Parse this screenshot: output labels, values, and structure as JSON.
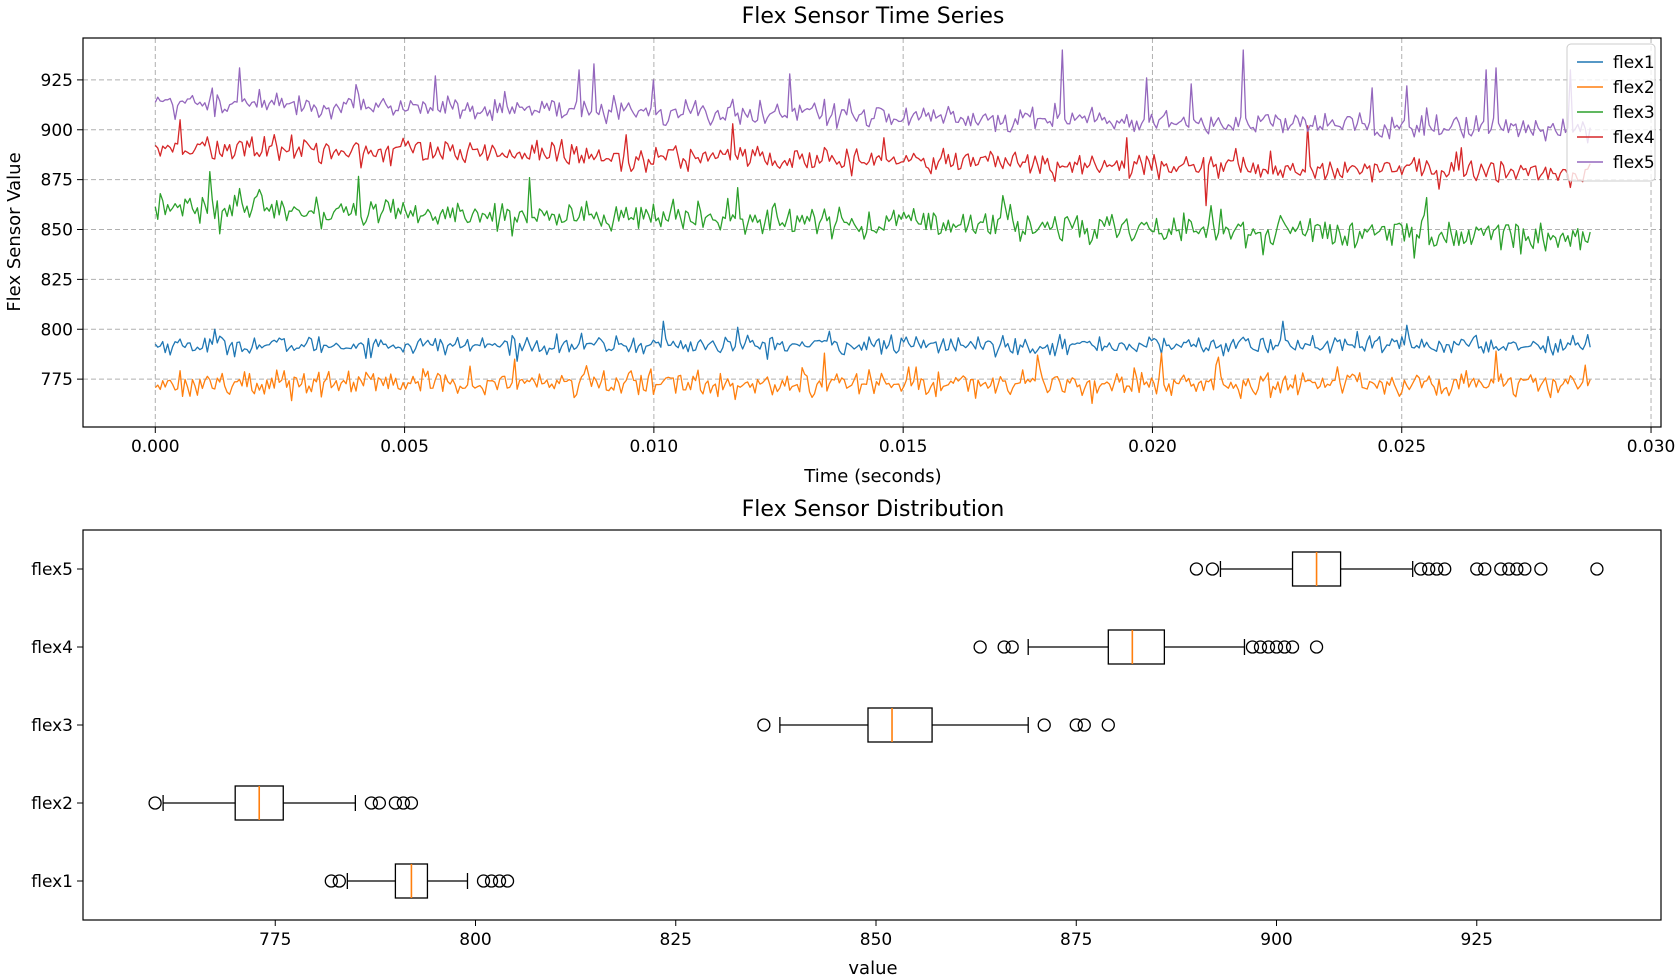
{
  "figure": {
    "background": "#ffffff"
  },
  "chart_data": [
    {
      "type": "line",
      "title": "Flex Sensor Time Series",
      "xlabel": "Time (seconds)",
      "ylabel": "Flex Sensor Value",
      "xlim": [
        -0.00145,
        0.0302
      ],
      "ylim": [
        751,
        946
      ],
      "xticks": [
        0.0,
        0.005,
        0.01,
        0.015,
        0.02,
        0.025,
        0.03
      ],
      "xtick_labels": [
        "0.000",
        "0.005",
        "0.010",
        "0.015",
        "0.020",
        "0.025",
        "0.030"
      ],
      "yticks": [
        775,
        800,
        825,
        850,
        875,
        900,
        925
      ],
      "ytick_labels": [
        "775",
        "800",
        "825",
        "850",
        "875",
        "900",
        "925"
      ],
      "grid": true,
      "legend_position": "top-right",
      "sample_count": 580,
      "x_end": 0.02878,
      "series": [
        {
          "name": "flex1",
          "color": "#1f77b4",
          "noise": 2.3,
          "trend": [
            [
              0.0,
              792
            ],
            [
              0.0288,
              792
            ]
          ],
          "spikes": [
            [
              0.0012,
              800
            ],
            [
              0.0102,
              804
            ],
            [
              0.0117,
              801
            ],
            [
              0.0135,
              799
            ],
            [
              0.0226,
              804
            ],
            [
              0.0251,
              802
            ]
          ]
        },
        {
          "name": "flex2",
          "color": "#ff7f0e",
          "noise": 3.3,
          "trend": [
            [
              0.0,
              773
            ],
            [
              0.0288,
              773
            ]
          ],
          "spikes": [
            [
              0.0072,
              785
            ],
            [
              0.0134,
              788
            ],
            [
              0.0177,
              787
            ],
            [
              0.0202,
              788
            ],
            [
              0.0213,
              786
            ],
            [
              0.0269,
              789
            ],
            [
              0.0287,
              782
            ]
          ]
        },
        {
          "name": "flex3",
          "color": "#2ca02c",
          "noise": 4.0,
          "trend": [
            [
              0.0,
              861
            ],
            [
              0.0288,
              846
            ]
          ],
          "spikes": [
            [
              0.0001,
              868
            ],
            [
              0.0011,
              879
            ],
            [
              0.0075,
              876
            ],
            [
              0.0117,
              871
            ],
            [
              0.017,
              867
            ],
            [
              0.0255,
              866
            ]
          ]
        },
        {
          "name": "flex4",
          "color": "#d62728",
          "noise": 3.2,
          "trend": [
            [
              0.0,
              891
            ],
            [
              0.0288,
              878
            ]
          ],
          "spikes": [
            [
              0.0005,
              905
            ],
            [
              0.0116,
              903
            ],
            [
              0.0146,
              896
            ],
            [
              0.0195,
              896
            ],
            [
              0.0231,
              902
            ],
            [
              0.0262,
              891
            ],
            [
              0.0211,
              862
            ]
          ]
        },
        {
          "name": "flex5",
          "color": "#9467bd",
          "noise": 3.1,
          "trend": [
            [
              0.0,
              914
            ],
            [
              0.0288,
              900
            ]
          ],
          "spikes": [
            [
              0.0017,
              931
            ],
            [
              0.0056,
              927
            ],
            [
              0.0085,
              930
            ],
            [
              0.0088,
              933
            ],
            [
              0.01,
              925
            ],
            [
              0.0127,
              928
            ],
            [
              0.0182,
              940
            ],
            [
              0.0199,
              926
            ],
            [
              0.0208,
              923
            ],
            [
              0.0218,
              940
            ],
            [
              0.0244,
              921
            ],
            [
              0.0251,
              922
            ],
            [
              0.0267,
              930
            ],
            [
              0.0269,
              931
            ],
            [
              0.0284,
              930
            ]
          ]
        }
      ]
    },
    {
      "type": "boxplot",
      "title": "Flex Sensor Distribution",
      "xlabel": "value",
      "ylabel": "",
      "xlim": [
        751,
        948
      ],
      "xticks": [
        775,
        800,
        825,
        850,
        875,
        900,
        925
      ],
      "xtick_labels": [
        "775",
        "800",
        "825",
        "850",
        "875",
        "900",
        "925"
      ],
      "grid": false,
      "box_color": "#000000",
      "median_color": "#ff7f0e",
      "boxes": [
        {
          "label": "flex1",
          "whisker_low": 784,
          "q1": 790,
          "median": 792,
          "q3": 794,
          "whisker_high": 799,
          "outliers": [
            782,
            783,
            801,
            802,
            803,
            804
          ]
        },
        {
          "label": "flex2",
          "whisker_low": 761,
          "q1": 770,
          "median": 773,
          "q3": 776,
          "whisker_high": 785,
          "outliers": [
            760,
            787,
            788,
            790,
            791,
            792
          ]
        },
        {
          "label": "flex3",
          "whisker_low": 838,
          "q1": 849,
          "median": 852,
          "q3": 857,
          "whisker_high": 869,
          "outliers": [
            836,
            871,
            875,
            876,
            879
          ]
        },
        {
          "label": "flex4",
          "whisker_low": 869,
          "q1": 879,
          "median": 882,
          "q3": 886,
          "whisker_high": 896,
          "outliers": [
            863,
            866,
            867,
            897,
            898,
            899,
            900,
            901,
            902,
            905
          ]
        },
        {
          "label": "flex5",
          "whisker_low": 893,
          "q1": 902,
          "median": 905,
          "q3": 908,
          "whisker_high": 917,
          "outliers": [
            890,
            892,
            918,
            919,
            920,
            921,
            925,
            926,
            928,
            929,
            930,
            931,
            933,
            940
          ]
        }
      ]
    }
  ]
}
